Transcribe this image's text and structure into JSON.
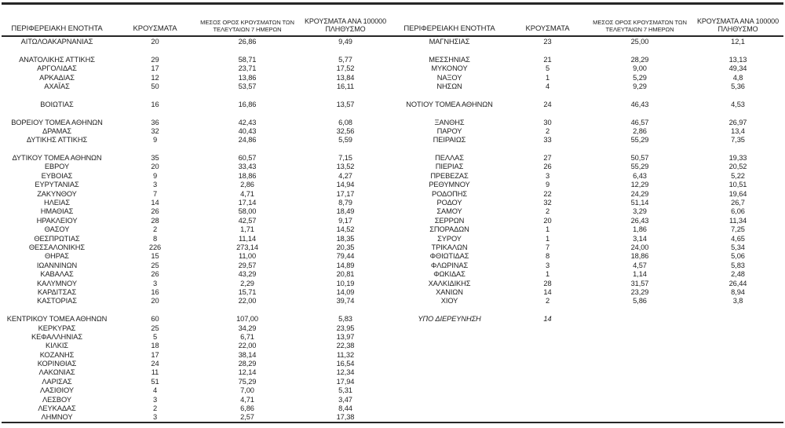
{
  "colors": {
    "text": "#1e1e1e",
    "rule": "#262626",
    "background": "#ffffff"
  },
  "columns": {
    "region": "ΠΕΡΙΦΕΡΕΙΑΚΗ ΕΝΟΤΗΤΑ",
    "cases": "ΚΡΟΥΣΜΑΤΑ",
    "avg7_line1": "ΜΕΣΟΣ ΟΡΟΣ ΚΡΟΥΣΜΑΤΩΝ ΤΩΝ",
    "avg7_line2": "ΤΕΛΕΥΤΑΙΩΝ 7 ΗΜΕΡΩΝ",
    "per100k_line1": "ΚΡΟΥΣΜΑΤΑ ΑΝΑ 100000",
    "per100k_line2": "ΠΛΗΘΥΣΜΟ"
  },
  "left_rows": [
    [
      "ΑΙΤΩΛΟΑΚΑΡΝΑΝΙΑΣ",
      "20",
      "26,86",
      "9,49"
    ],
    null,
    [
      "ΑΝΑΤΟΛΙΚΗΣ ΑΤΤΙΚΗΣ",
      "29",
      "58,71",
      "5,77"
    ],
    [
      "ΑΡΓΟΛΙΔΑΣ",
      "17",
      "23,71",
      "17,52"
    ],
    [
      "ΑΡΚΑΔΙΑΣ",
      "12",
      "13,86",
      "13,84"
    ],
    [
      "ΑΧΑΪΑΣ",
      "50",
      "53,57",
      "16,11"
    ],
    null,
    [
      "ΒΟΙΩΤΙΑΣ",
      "16",
      "16,86",
      "13,57"
    ],
    null,
    [
      "ΒΟΡΕΙΟΥ ΤΟΜΕΑ ΑΘΗΝΩΝ",
      "36",
      "42,43",
      "6,08"
    ],
    [
      "ΔΡΑΜΑΣ",
      "32",
      "40,43",
      "32,56"
    ],
    [
      "ΔΥΤΙΚΗΣ ΑΤΤΙΚΗΣ",
      "9",
      "24,86",
      "5,59"
    ],
    null,
    [
      "ΔΥΤΙΚΟΥ ΤΟΜΕΑ ΑΘΗΝΩΝ",
      "35",
      "60,57",
      "7,15"
    ],
    [
      "ΕΒΡΟΥ",
      "20",
      "33,43",
      "13,52"
    ],
    [
      "ΕΥΒΟΙΑΣ",
      "9",
      "18,86",
      "4,27"
    ],
    [
      "ΕΥΡΥΤΑΝΙΑΣ",
      "3",
      "2,86",
      "14,94"
    ],
    [
      "ΖΑΚΥΝΘΟΥ",
      "7",
      "4,71",
      "17,17"
    ],
    [
      "ΗΛΕΙΑΣ",
      "14",
      "17,14",
      "8,79"
    ],
    [
      "ΗΜΑΘΙΑΣ",
      "26",
      "58,00",
      "18,49"
    ],
    [
      "ΗΡΑΚΛΕΙΟΥ",
      "28",
      "42,57",
      "9,17"
    ],
    [
      "ΘΑΣΟΥ",
      "2",
      "1,71",
      "14,52"
    ],
    [
      "ΘΕΣΠΡΩΤΙΑΣ",
      "8",
      "11,14",
      "18,35"
    ],
    [
      "ΘΕΣΣΑΛΟΝΙΚΗΣ",
      "226",
      "273,14",
      "20,35"
    ],
    [
      "ΘΗΡΑΣ",
      "15",
      "11,00",
      "79,44"
    ],
    [
      "ΙΩΑΝΝΙΝΩΝ",
      "25",
      "29,57",
      "14,89"
    ],
    [
      "ΚΑΒΑΛΑΣ",
      "26",
      "43,29",
      "20,81"
    ],
    [
      "ΚΑΛΥΜΝΟΥ",
      "3",
      "2,29",
      "10,19"
    ],
    [
      "ΚΑΡΔΙΤΣΑΣ",
      "16",
      "15,71",
      "14,09"
    ],
    [
      "ΚΑΣΤΟΡΙΑΣ",
      "20",
      "22,00",
      "39,74"
    ],
    null,
    [
      "ΚΕΝΤΡΙΚΟΥ ΤΟΜΕΑ ΑΘΗΝΩΝ",
      "60",
      "107,00",
      "5,83"
    ],
    [
      "ΚΕΡΚΥΡΑΣ",
      "25",
      "34,29",
      "23,95"
    ],
    [
      "ΚΕΦΑΛΛΗΝΙΑΣ",
      "5",
      "6,71",
      "13,97"
    ],
    [
      "ΚΙΛΚΙΣ",
      "18",
      "22,00",
      "22,38"
    ],
    [
      "ΚΟΖΑΝΗΣ",
      "17",
      "38,14",
      "11,32"
    ],
    [
      "ΚΟΡΙΝΘΙΑΣ",
      "24",
      "28,29",
      "16,54"
    ],
    [
      "ΛΑΚΩΝΙΑΣ",
      "11",
      "12,14",
      "12,34"
    ],
    [
      "ΛΑΡΙΣΑΣ",
      "51",
      "75,29",
      "17,94"
    ],
    [
      "ΛΑΣΙΘΙΟΥ",
      "4",
      "7,00",
      "5,31"
    ],
    [
      "ΛΕΣΒΟΥ",
      "3",
      "4,71",
      "3,47"
    ],
    [
      "ΛΕΥΚΑΔΑΣ",
      "2",
      "6,86",
      "8,44"
    ],
    [
      "ΛΗΜΝΟΥ",
      "3",
      "2,57",
      "17,38"
    ]
  ],
  "right_rows": [
    [
      "ΜΑΓΝΗΣΙΑΣ",
      "23",
      "25,00",
      "12,1"
    ],
    null,
    [
      "ΜΕΣΣΗΝΙΑΣ",
      "21",
      "28,29",
      "13,13"
    ],
    [
      "ΜΥΚΟΝΟΥ",
      "5",
      "9,00",
      "49,34"
    ],
    [
      "ΝΑΞΟΥ",
      "1",
      "5,29",
      "4,8"
    ],
    [
      "ΝΗΣΩΝ",
      "4",
      "9,29",
      "5,36"
    ],
    null,
    [
      "ΝΟΤΙΟΥ ΤΟΜΕΑ ΑΘΗΝΩΝ",
      "24",
      "46,43",
      "4,53"
    ],
    null,
    [
      "ΞΑΝΘΗΣ",
      "30",
      "46,57",
      "26,97"
    ],
    [
      "ΠΑΡΟΥ",
      "2",
      "2,86",
      "13,4"
    ],
    [
      "ΠΕΙΡΑΙΩΣ",
      "33",
      "55,29",
      "7,35"
    ],
    null,
    [
      "ΠΕΛΛΑΣ",
      "27",
      "50,57",
      "19,33"
    ],
    [
      "ΠΙΕΡΙΑΣ",
      "26",
      "55,29",
      "20,52"
    ],
    [
      "ΠΡΕΒΕΖΑΣ",
      "3",
      "6,43",
      "5,22"
    ],
    [
      "ΡΕΘΥΜΝΟΥ",
      "9",
      "12,29",
      "10,51"
    ],
    [
      "ΡΟΔΟΠΗΣ",
      "22",
      "24,29",
      "19,64"
    ],
    [
      "ΡΟΔΟΥ",
      "32",
      "51,14",
      "26,7"
    ],
    [
      "ΣΑΜΟΥ",
      "2",
      "3,29",
      "6,06"
    ],
    [
      "ΣΕΡΡΩΝ",
      "20",
      "26,43",
      "11,34"
    ],
    [
      "ΣΠΟΡΑΔΩΝ",
      "1",
      "1,86",
      "7,25"
    ],
    [
      "ΣΥΡΟΥ",
      "1",
      "3,14",
      "4,65"
    ],
    [
      "ΤΡΙΚΑΛΩΝ",
      "7",
      "24,00",
      "5,34"
    ],
    [
      "ΦΘΙΩΤΙΔΑΣ",
      "8",
      "18,86",
      "5,06"
    ],
    [
      "ΦΛΩΡΙΝΑΣ",
      "3",
      "4,57",
      "5,83"
    ],
    [
      "ΦΩΚΙΔΑΣ",
      "1",
      "1,14",
      "2,48"
    ],
    [
      "ΧΑΛΚΙΔΙΚΗΣ",
      "28",
      "31,57",
      "26,44"
    ],
    [
      "ΧΑΝΙΩΝ",
      "14",
      "23,29",
      "8,94"
    ],
    [
      "ΧΙΟΥ",
      "2",
      "5,86",
      "3,8"
    ],
    null,
    [
      "ΥΠΟ ΔΙΕΡΕΥΝΗΣΗ",
      "14",
      "",
      "",
      "italic"
    ]
  ]
}
